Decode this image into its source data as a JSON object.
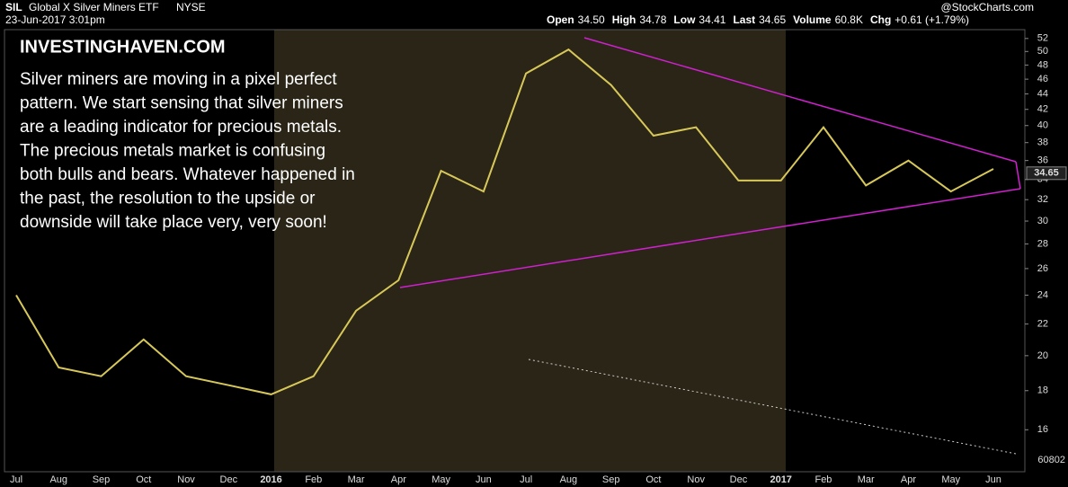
{
  "chart_data": {
    "type": "line",
    "symbol": "SIL",
    "title": "Global X Silver Miners ETF",
    "exchange": "NYSE",
    "date": "23-Jun-2017 3:01pm",
    "source": "@StockCharts.com",
    "quote": [
      {
        "name": "Open",
        "text": "34.50"
      },
      {
        "name": "High",
        "text": "34.78"
      },
      {
        "name": "Low",
        "text": "34.41"
      },
      {
        "name": "Last",
        "text": "34.65"
      },
      {
        "name": "Volume",
        "text": "60.8K"
      },
      {
        "name": "Chg",
        "text": "+0.61 (+1.79%)"
      }
    ],
    "annotation_title": "INVESTINGHAVEN.COM",
    "annotation_lines": [
      "Silver miners are moving in a pixel perfect",
      "pattern. We start sensing that silver miners",
      "are a leading indicator for precious metals.",
      "The precious metals market is confusing",
      "both bulls and bears. Whatever happened in",
      "the past, the resolution to the upside or",
      "downside will take place very, very soon!"
    ],
    "categories": [
      "Jul",
      "Aug",
      "Sep",
      "Oct",
      "Nov",
      "Dec",
      "2016",
      "Feb",
      "Mar",
      "Apr",
      "May",
      "Jun",
      "Jul",
      "Aug",
      "Sep",
      "Oct",
      "Nov",
      "Dec",
      "2017",
      "Feb",
      "Mar",
      "Apr",
      "May",
      "Jun"
    ],
    "series": [
      {
        "name": "SIL",
        "color": "#d8c85a",
        "values": [
          24.0,
          19.3,
          18.8,
          21.0,
          18.8,
          18.3,
          17.8,
          18.8,
          22.9,
          25.1,
          34.9,
          32.8,
          46.8,
          50.3,
          45.2,
          38.8,
          39.8,
          33.9,
          33.9,
          39.8,
          33.4,
          36.0,
          32.8,
          35.1
        ]
      }
    ],
    "last": {
      "value": 34.65,
      "label": "34.65"
    },
    "volume_last": 60802,
    "log_scale": true,
    "ylim": [
      14.1,
      53.4
    ],
    "yticks": [
      16,
      18,
      20,
      22,
      24,
      26,
      28,
      30,
      32,
      34,
      36,
      38,
      40,
      42,
      44,
      46,
      48,
      50,
      52
    ]
  }
}
